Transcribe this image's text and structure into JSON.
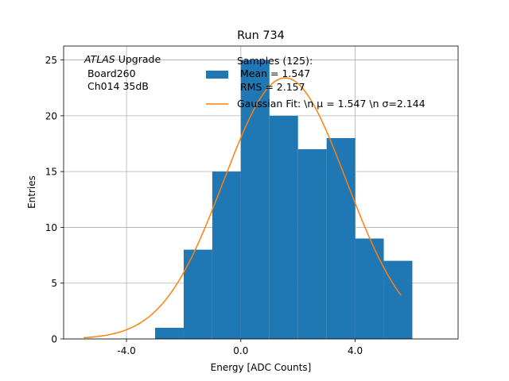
{
  "chart_data": {
    "type": "bar",
    "title": "Run 734",
    "xlabel": "Energy [ADC Counts]",
    "ylabel": "Entries",
    "xlim": [
      -6.2,
      7.6
    ],
    "ylim": [
      0,
      26.25
    ],
    "grid": true,
    "xticks": [
      {
        "value": -4,
        "label": "-4.0"
      },
      {
        "value": 0,
        "label": "0.0"
      },
      {
        "value": 4,
        "label": "4.0"
      }
    ],
    "yticks": [
      0,
      5,
      10,
      15,
      20,
      25
    ],
    "bin_edges": [
      -3,
      -2,
      -1,
      0,
      1,
      2,
      3,
      4,
      5,
      6
    ],
    "values": [
      1,
      8,
      15,
      25,
      20,
      17,
      18,
      9,
      7
    ],
    "annotation": {
      "italic": "ATLAS",
      "rest": " Upgrade",
      "lines": [
        " Board260",
        " Ch014 35dB"
      ]
    },
    "legend": {
      "placement": "top-right",
      "histogram_lines": [
        "Samples (125):",
        " Mean = 1.547",
        " RMS = 2.157"
      ],
      "fit_label": "Gaussian Fit: \\n μ = 1.547 \\n σ=2.144"
    },
    "fit": {
      "mu": 1.547,
      "sigma": 2.144,
      "amplitude": 23.4,
      "x_min": -5.5,
      "x_max": 5.6
    },
    "colors": {
      "bars": "#1f77b4",
      "fit": "#ff7f0e",
      "grid": "#b0b0b0"
    }
  }
}
